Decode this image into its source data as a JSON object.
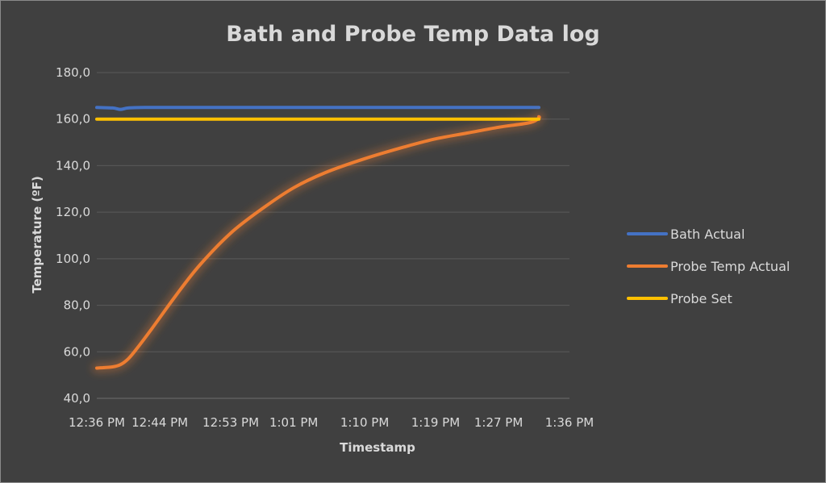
{
  "colors": {
    "background": "#404040",
    "text": "#d9d9d9",
    "gridline": "#5a5a5a"
  },
  "chart_data": {
    "type": "line",
    "title": "Bath and Probe Temp Data log",
    "xlabel": "Timestamp",
    "ylabel": "Temperature (ºF)",
    "ylim": [
      40,
      180
    ],
    "y_ticks": [
      "40,0",
      "60,0",
      "80,0",
      "100,0",
      "120,0",
      "140,0",
      "160,0",
      "180,0"
    ],
    "y_tick_values": [
      40,
      60,
      80,
      100,
      120,
      140,
      160,
      180
    ],
    "x_ticks": [
      "12:36 PM",
      "12:44 PM",
      "12:53 PM",
      "1:01 PM",
      "1:10 PM",
      "1:19 PM",
      "1:27 PM",
      "1:36 PM"
    ],
    "x_tick_values": [
      "12:36",
      "12:44",
      "12:53",
      "13:01",
      "13:10",
      "13:19",
      "13:27",
      "13:36"
    ],
    "xlim": [
      "12:36",
      "13:36"
    ],
    "grid": "horizontal",
    "legend_position": "right",
    "series": [
      {
        "name": "Bath Actual",
        "color": "#4472c4",
        "glow": false,
        "points": [
          [
            "12:36",
            165.0
          ],
          [
            "12:38",
            164.8
          ],
          [
            "12:39",
            164.2
          ],
          [
            "12:40",
            164.8
          ],
          [
            "12:42",
            165.0
          ],
          [
            "12:45",
            165.0
          ],
          [
            "13:00",
            165.0
          ],
          [
            "13:15",
            165.0
          ],
          [
            "13:30",
            165.0
          ],
          [
            "13:36",
            165.0
          ]
        ]
      },
      {
        "name": "Probe Temp Actual",
        "color": "#ed7d31",
        "glow": true,
        "points": [
          [
            "12:36",
            53.0
          ],
          [
            "12:38",
            53.5
          ],
          [
            "12:39",
            54.5
          ],
          [
            "12:40",
            57.0
          ],
          [
            "12:41",
            61.0
          ],
          [
            "12:43",
            70.0
          ],
          [
            "12:46",
            84.0
          ],
          [
            "12:49",
            97.0
          ],
          [
            "12:53",
            111.0
          ],
          [
            "12:57",
            121.5
          ],
          [
            "13:01",
            130.5
          ],
          [
            "13:05",
            137.0
          ],
          [
            "13:10",
            143.0
          ],
          [
            "13:15",
            148.0
          ],
          [
            "13:19",
            151.5
          ],
          [
            "13:23",
            154.0
          ],
          [
            "13:27",
            156.5
          ],
          [
            "13:31",
            158.5
          ],
          [
            "13:35",
            160.5
          ],
          [
            "13:36",
            161.0
          ]
        ]
      },
      {
        "name": "Probe Set",
        "color": "#ffc000",
        "glow": true,
        "points": [
          [
            "12:36",
            160.0
          ],
          [
            "13:00",
            160.0
          ],
          [
            "13:20",
            160.0
          ],
          [
            "13:36",
            160.0
          ]
        ]
      }
    ]
  }
}
